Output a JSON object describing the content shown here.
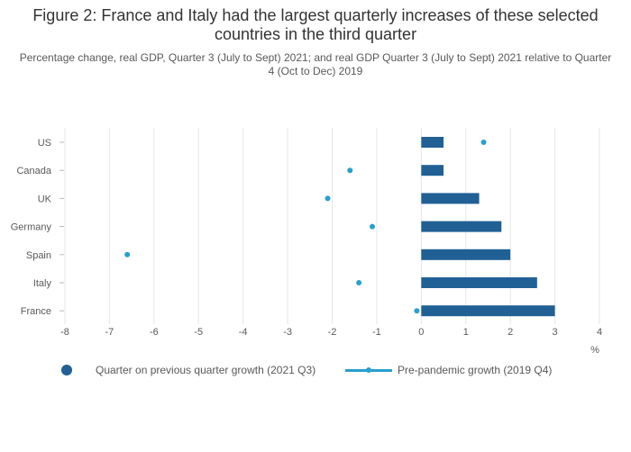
{
  "title": "Figure 2: France and Italy had the largest quarterly increases of these selected countries in the third quarter",
  "subtitle": "Percentage change, real GDP, Quarter 3 (July to Sept) 2021; and real GDP Quarter 3 (July to Sept) 2021 relative to Quarter 4 (Oct to Dec) 2019",
  "colors": {
    "bar": "#206095",
    "dot": "#27a0cc",
    "grid": "#e6e6e6",
    "text": "#595959"
  },
  "chart_data": {
    "type": "bar",
    "orientation": "horizontal",
    "categories": [
      "US",
      "Canada",
      "UK",
      "Germany",
      "Spain",
      "Italy",
      "France"
    ],
    "series": [
      {
        "name": "Quarter on previous quarter growth (2021 Q3)",
        "kind": "bar",
        "values": [
          0.5,
          0.5,
          1.3,
          1.8,
          2.0,
          2.6,
          3.0
        ]
      },
      {
        "name": "Pre-pandemic growth (2019 Q4)",
        "kind": "dot",
        "values": [
          1.4,
          -1.6,
          -2.1,
          -1.1,
          -6.6,
          -1.4,
          -0.1
        ]
      }
    ],
    "xlabel": "%",
    "xlim": [
      -8,
      4
    ],
    "xticks": [
      -8,
      -7,
      -6,
      -5,
      -4,
      -3,
      -2,
      -1,
      0,
      1,
      2,
      3,
      4
    ],
    "grid": true,
    "legend_position": "bottom"
  }
}
